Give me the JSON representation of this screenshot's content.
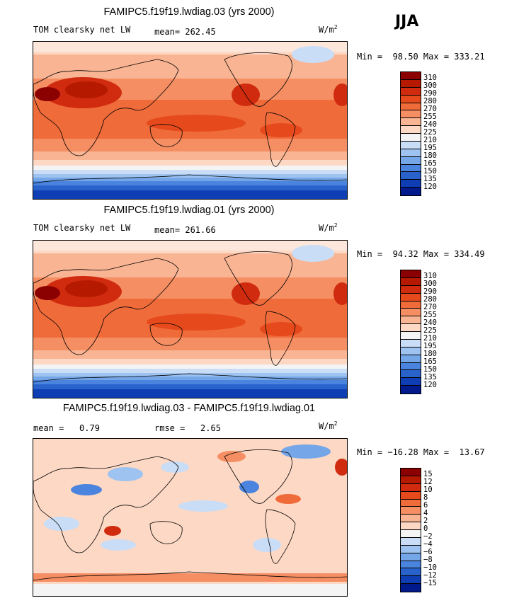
{
  "season": "JJA",
  "units_label": "W/m",
  "units_exp": "2",
  "panels": [
    {
      "title": "FAMIPC5.f19f19.lwdiag.03 (yrs 2000)",
      "variable": "TOM clearsky net LW",
      "stat1_label": "mean=",
      "stat1_value": "262.45",
      "minmax": "Min =  98.50 Max = 333.21",
      "levels": [
        "310",
        "300",
        "290",
        "280",
        "270",
        "255",
        "240",
        "225",
        "210",
        "195",
        "180",
        "165",
        "150",
        "135",
        "120"
      ],
      "colors": [
        "#8b0000",
        "#b51a00",
        "#d02b0f",
        "#e64a1c",
        "#f06b3a",
        "#f58e63",
        "#f9b493",
        "#fdd8c4",
        "#f4f4f4",
        "#c9ddf6",
        "#9ec3f0",
        "#74a6e8",
        "#4b84de",
        "#2a62cc",
        "#0f3eb4",
        "#001a8c"
      ]
    },
    {
      "title": "FAMIPC5.f19f19.lwdiag.01 (yrs 2000)",
      "variable": "TOM clearsky net LW",
      "stat1_label": "mean=",
      "stat1_value": "261.66",
      "minmax": "Min =  94.32 Max = 334.49",
      "levels": [
        "310",
        "300",
        "290",
        "280",
        "270",
        "255",
        "240",
        "225",
        "210",
        "195",
        "180",
        "165",
        "150",
        "135",
        "120"
      ],
      "colors": [
        "#8b0000",
        "#b51a00",
        "#d02b0f",
        "#e64a1c",
        "#f06b3a",
        "#f58e63",
        "#f9b493",
        "#fdd8c4",
        "#f4f4f4",
        "#c9ddf6",
        "#9ec3f0",
        "#74a6e8",
        "#4b84de",
        "#2a62cc",
        "#0f3eb4",
        "#001a8c"
      ]
    },
    {
      "title": "FAMIPC5.f19f19.lwdiag.03 - FAMIPC5.f19f19.lwdiag.01",
      "stat1_label": "mean =",
      "stat1_value": "0.79",
      "stat2_label": "rmse =",
      "stat2_value": "2.65",
      "minmax": "Min = −16.28 Max =  13.67",
      "levels": [
        "15",
        "12",
        "10",
        "8",
        "6",
        "4",
        "2",
        "0",
        "−2",
        "−4",
        "−6",
        "−8",
        "−10",
        "−12",
        "−15"
      ],
      "colors": [
        "#8b0000",
        "#b51a00",
        "#d02b0f",
        "#e64a1c",
        "#f06b3a",
        "#f58e63",
        "#f9b493",
        "#fdd8c4",
        "#f4f4f4",
        "#c9ddf6",
        "#9ec3f0",
        "#74a6e8",
        "#4b84de",
        "#2a62cc",
        "#0f3eb4",
        "#001a8c"
      ]
    }
  ]
}
